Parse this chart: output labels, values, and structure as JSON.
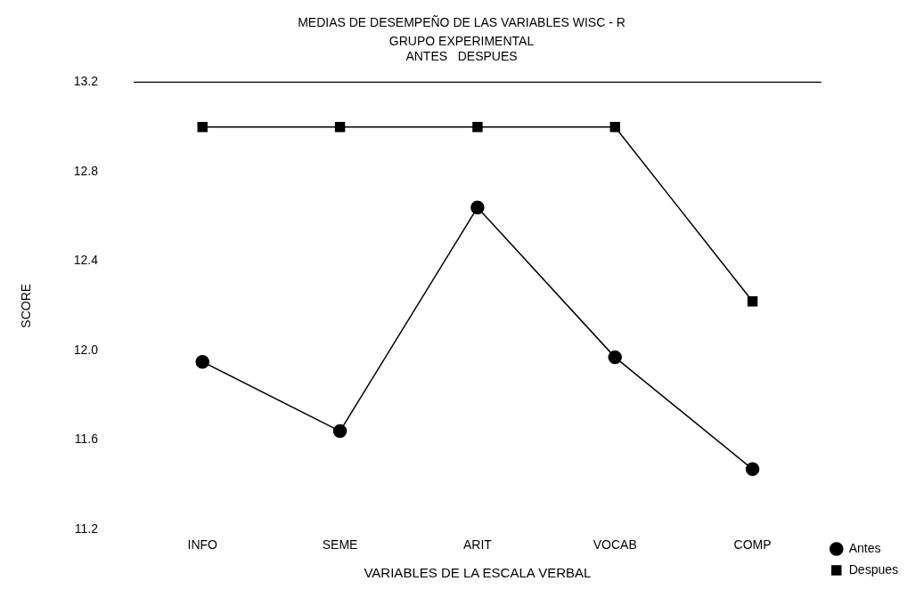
{
  "chart_data": {
    "type": "line",
    "title": "MEDIAS DE DESEMPEÑO DE LAS VARIABLES WISC - R",
    "subtitle": "GRUPO EXPERIMENTAL\nANTES   DESPUES",
    "xlabel": "VARIABLES DE LA ESCALA VERBAL",
    "ylabel": "SCORE",
    "categories": [
      "INFO",
      "SEME",
      "ARIT",
      "VOCAB",
      "COMP"
    ],
    "series": [
      {
        "name": "Antes",
        "color": "#000000",
        "marker": "circle",
        "values": [
          11.95,
          11.64,
          12.64,
          11.97,
          11.47
        ]
      },
      {
        "name": "Despues",
        "color": "#000000",
        "marker": "square",
        "values": [
          13.0,
          13.0,
          13.0,
          13.0,
          12.22
        ]
      }
    ],
    "ylim": [
      11.2,
      13.2
    ],
    "yticks": [
      11.2,
      11.6,
      {
        "value": 12,
        "label": "12.0"
      },
      12.4,
      12.8,
      13.2
    ],
    "ref_lines": [
      {
        "axis": "y",
        "value": 13.2
      }
    ],
    "grid": false,
    "legend": "bottom right",
    "line_style": "solid"
  }
}
